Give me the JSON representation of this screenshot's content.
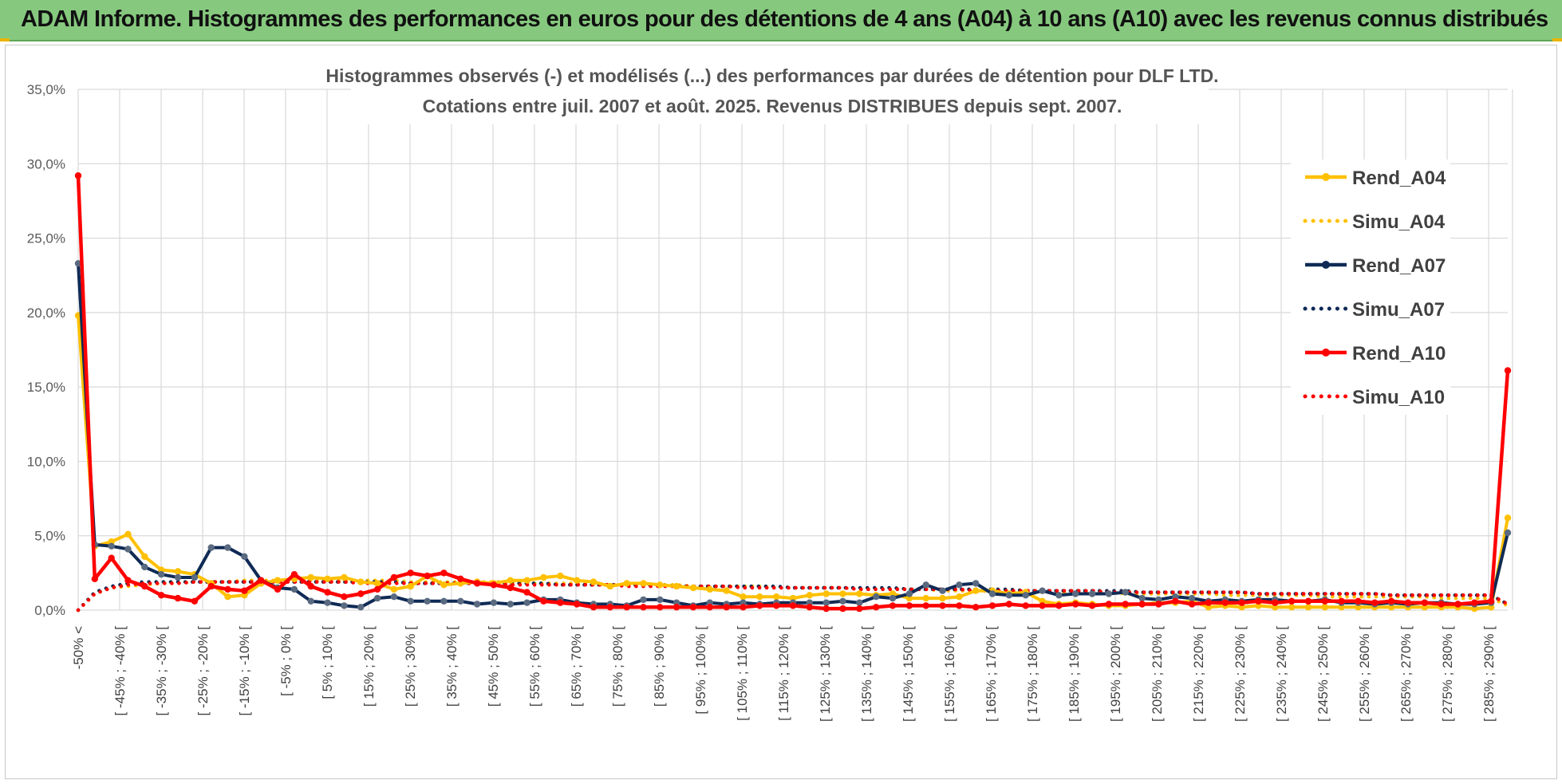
{
  "banner": {
    "title": "ADAM Informe. Histogrammes des performances en euros pour des détentions de 4 ans (A04) à 10 ans (A10) avec les revenus connus distribués",
    "color": "#86c97e"
  },
  "chart_data": {
    "type": "line",
    "title_lines": [
      "Histogrammes observés (-) et modélisés (...) des performances par durées de détention pour DLF LTD.",
      "Cotations entre juil. 2007 et août. 2025. Revenus DISTRIBUES depuis sept. 2007."
    ],
    "ylim": [
      0,
      35
    ],
    "yticks": [
      "0,0%",
      "5,0%",
      "10,0%",
      "15,0%",
      "20,0%",
      "25,0%",
      "30,0%",
      "35,0%"
    ],
    "grid": true,
    "legend_position": "right",
    "x_labels": [
      "-50% <",
      "[ -45% ; -40% [",
      "[ -35% ; -30% [",
      "[ -25% ; -20% [",
      "[ -15% ; -10% [",
      "[ -5% ; 0% [",
      "[ 5% ; 10% [",
      "[ 15% ; 20% [",
      "[ 25% ; 30% [",
      "[ 35% ; 40% [",
      "[ 45% ; 50% [",
      "[ 55% ; 60% [",
      "[ 65% ; 70% [",
      "[ 75% ; 80% [",
      "[ 85% ; 90% [",
      "[ 95% ; 100% [",
      "[ 105% ; 110% [",
      "[ 115% ; 120% [",
      "[ 125% ; 130% [",
      "[ 135% ; 140% [",
      "[ 145% ; 150% [",
      "[ 155% ; 160% [",
      "[ 165% ; 170% [",
      "[ 175% ; 180% [",
      "[ 185% ; 190% [",
      "[ 195% ; 200% [",
      "[ 205% ; 210% [",
      "[ 215% ; 220% [",
      "[ 225% ; 230% [",
      "[ 235% ; 240% [",
      "[ 245% ; 250% [",
      "[ 255% ; 260% [",
      "[ 265% ; 270% [",
      "[ 275% ; 280% [",
      "[ 285% ; 290% ["
    ],
    "series": [
      {
        "name": "Rend_A04",
        "style": "solid",
        "color": "#ffc000",
        "values": [
          19.8,
          4.3,
          4.6,
          5.1,
          3.6,
          2.7,
          2.6,
          2.4,
          1.8,
          0.9,
          1.0,
          1.8,
          2.0,
          2.1,
          2.2,
          2.1,
          2.2,
          1.9,
          1.8,
          1.4,
          1.6,
          2.3,
          1.7,
          1.8,
          1.9,
          1.8,
          2.0,
          2.0,
          2.2,
          2.3,
          2.0,
          1.9,
          1.6,
          1.8,
          1.8,
          1.7,
          1.6,
          1.5,
          1.4,
          1.3,
          0.9,
          0.9,
          0.9,
          0.8,
          1.0,
          1.1,
          1.1,
          1.1,
          1.0,
          1.1,
          0.8,
          0.8,
          0.8,
          0.9,
          1.3,
          1.3,
          1.1,
          1.2,
          0.6,
          0.4,
          0.5,
          0.4,
          0.3,
          0.3,
          0.4,
          0.5,
          0.5,
          0.6,
          0.2,
          0.3,
          0.2,
          0.3,
          0.2,
          0.2,
          0.2,
          0.2,
          0.2,
          0.2,
          0.2,
          0.2,
          0.2,
          0.2,
          0.2,
          0.2,
          0.1,
          0.2,
          6.2
        ]
      },
      {
        "name": "Simu_A04",
        "style": "dotted",
        "color": "#ffc000",
        "values": [
          0.0,
          1.1,
          1.5,
          1.6,
          1.7,
          1.8,
          1.8,
          1.9,
          1.9,
          1.9,
          2.0,
          2.0,
          2.0,
          2.0,
          2.0,
          2.0,
          2.0,
          2.0,
          2.0,
          2.0,
          1.9,
          1.9,
          1.9,
          1.9,
          1.9,
          1.9,
          1.9,
          1.8,
          1.8,
          1.8,
          1.8,
          1.8,
          1.7,
          1.7,
          1.7,
          1.7,
          1.7,
          1.6,
          1.6,
          1.6,
          1.6,
          1.6,
          1.5,
          1.5,
          1.5,
          1.5,
          1.5,
          1.4,
          1.4,
          1.4,
          1.4,
          1.4,
          1.3,
          1.3,
          1.3,
          1.3,
          1.3,
          1.2,
          1.2,
          1.2,
          1.2,
          1.2,
          1.2,
          1.1,
          1.1,
          1.1,
          1.1,
          1.1,
          1.1,
          1.0,
          1.0,
          1.0,
          1.0,
          1.0,
          1.0,
          0.9,
          0.9,
          0.9,
          0.9,
          0.9,
          0.9,
          0.9,
          0.8,
          0.8,
          0.8,
          0.8,
          0.3
        ]
      },
      {
        "name": "Rend_A07",
        "style": "solid",
        "color": "#0f2a55",
        "values": [
          23.3,
          4.4,
          4.3,
          4.1,
          2.9,
          2.4,
          2.2,
          2.2,
          4.2,
          4.2,
          3.6,
          2.0,
          1.5,
          1.4,
          0.6,
          0.5,
          0.3,
          0.2,
          0.8,
          0.9,
          0.6,
          0.6,
          0.6,
          0.6,
          0.4,
          0.5,
          0.4,
          0.5,
          0.7,
          0.7,
          0.5,
          0.4,
          0.4,
          0.3,
          0.7,
          0.7,
          0.5,
          0.3,
          0.5,
          0.4,
          0.5,
          0.4,
          0.5,
          0.5,
          0.5,
          0.5,
          0.6,
          0.5,
          0.9,
          0.8,
          1.1,
          1.7,
          1.3,
          1.7,
          1.8,
          1.1,
          1.0,
          1.0,
          1.3,
          1.0,
          1.1,
          1.1,
          1.1,
          1.2,
          0.8,
          0.7,
          0.9,
          0.8,
          0.6,
          0.7,
          0.6,
          0.7,
          0.7,
          0.6,
          0.6,
          0.7,
          0.5,
          0.5,
          0.4,
          0.5,
          0.4,
          0.5,
          0.5,
          0.4,
          0.4,
          0.5,
          5.2
        ]
      },
      {
        "name": "Simu_A07",
        "style": "dotted",
        "color": "#0f2a55",
        "values": [
          0.0,
          1.2,
          1.6,
          1.8,
          1.9,
          1.9,
          1.9,
          1.9,
          1.9,
          1.9,
          1.9,
          1.9,
          1.9,
          1.9,
          1.9,
          1.9,
          1.9,
          1.9,
          1.9,
          1.9,
          1.8,
          1.8,
          1.8,
          1.8,
          1.8,
          1.8,
          1.8,
          1.8,
          1.8,
          1.7,
          1.7,
          1.7,
          1.7,
          1.7,
          1.7,
          1.7,
          1.6,
          1.6,
          1.6,
          1.6,
          1.6,
          1.6,
          1.6,
          1.5,
          1.5,
          1.5,
          1.5,
          1.5,
          1.5,
          1.5,
          1.4,
          1.4,
          1.4,
          1.4,
          1.4,
          1.4,
          1.4,
          1.3,
          1.3,
          1.3,
          1.3,
          1.3,
          1.3,
          1.3,
          1.2,
          1.2,
          1.2,
          1.2,
          1.2,
          1.2,
          1.2,
          1.1,
          1.1,
          1.1,
          1.1,
          1.1,
          1.1,
          1.1,
          1.1,
          1.0,
          1.0,
          1.0,
          1.0,
          1.0,
          1.0,
          1.0,
          0.4
        ]
      },
      {
        "name": "Rend_A10",
        "style": "solid",
        "color": "#ff0000",
        "values": [
          29.2,
          2.1,
          3.5,
          2.0,
          1.6,
          1.0,
          0.8,
          0.6,
          1.6,
          1.4,
          1.3,
          2.0,
          1.4,
          2.4,
          1.6,
          1.2,
          0.9,
          1.1,
          1.4,
          2.2,
          2.5,
          2.3,
          2.5,
          2.1,
          1.8,
          1.7,
          1.5,
          1.2,
          0.6,
          0.5,
          0.4,
          0.2,
          0.2,
          0.2,
          0.2,
          0.2,
          0.2,
          0.2,
          0.2,
          0.2,
          0.2,
          0.3,
          0.3,
          0.3,
          0.2,
          0.1,
          0.1,
          0.1,
          0.2,
          0.3,
          0.3,
          0.3,
          0.3,
          0.3,
          0.2,
          0.3,
          0.4,
          0.3,
          0.3,
          0.3,
          0.4,
          0.3,
          0.4,
          0.4,
          0.4,
          0.4,
          0.6,
          0.4,
          0.5,
          0.5,
          0.5,
          0.6,
          0.5,
          0.6,
          0.6,
          0.6,
          0.6,
          0.6,
          0.5,
          0.6,
          0.5,
          0.5,
          0.4,
          0.4,
          0.5,
          0.6,
          16.1
        ]
      },
      {
        "name": "Simu_A10",
        "style": "dotted",
        "color": "#ff0000",
        "values": [
          0.0,
          1.1,
          1.5,
          1.7,
          1.8,
          1.8,
          1.8,
          1.9,
          1.9,
          1.9,
          1.9,
          1.9,
          1.9,
          1.9,
          1.9,
          1.9,
          1.9,
          1.8,
          1.8,
          1.8,
          1.8,
          1.8,
          1.8,
          1.8,
          1.8,
          1.8,
          1.7,
          1.7,
          1.7,
          1.7,
          1.7,
          1.7,
          1.7,
          1.6,
          1.6,
          1.6,
          1.6,
          1.6,
          1.6,
          1.6,
          1.5,
          1.5,
          1.5,
          1.5,
          1.5,
          1.5,
          1.5,
          1.4,
          1.4,
          1.4,
          1.4,
          1.4,
          1.4,
          1.4,
          1.3,
          1.3,
          1.3,
          1.3,
          1.3,
          1.3,
          1.3,
          1.3,
          1.2,
          1.2,
          1.2,
          1.2,
          1.2,
          1.2,
          1.2,
          1.2,
          1.2,
          1.1,
          1.1,
          1.1,
          1.1,
          1.1,
          1.1,
          1.1,
          1.1,
          1.0,
          1.0,
          1.0,
          1.0,
          1.0,
          1.0,
          1.0,
          0.4
        ]
      }
    ]
  }
}
